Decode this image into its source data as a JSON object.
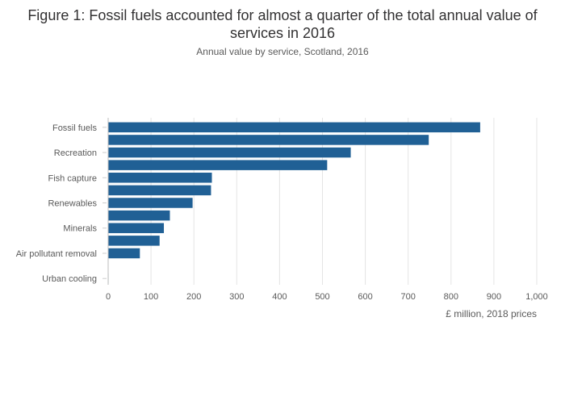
{
  "chart_data": {
    "type": "bar",
    "orientation": "horizontal",
    "title": "Figure 1: Fossil fuels accounted for almost a quarter of the total annual value of services in 2016",
    "subtitle": "Annual value by service, Scotland, 2016",
    "xlabel": "£ million, 2018 prices",
    "ylabel": "",
    "xlim": [
      0,
      1000
    ],
    "x_ticks": [
      0,
      100,
      200,
      300,
      400,
      500,
      600,
      700,
      800,
      900,
      1000
    ],
    "x_tick_labels": [
      "0",
      "100",
      "200",
      "300",
      "400",
      "500",
      "600",
      "700",
      "800",
      "900",
      "1,000"
    ],
    "grid": "vertical",
    "bar_color": "#206095",
    "categories": [
      "Fossil fuels",
      "",
      "Recreation",
      "",
      "Fish capture",
      "",
      "Renewables",
      "",
      "Minerals",
      "",
      "Air pollutant removal",
      "",
      "Urban cooling"
    ],
    "values": [
      868,
      748,
      566,
      511,
      242,
      240,
      197,
      144,
      130,
      120,
      74,
      0,
      1
    ]
  }
}
